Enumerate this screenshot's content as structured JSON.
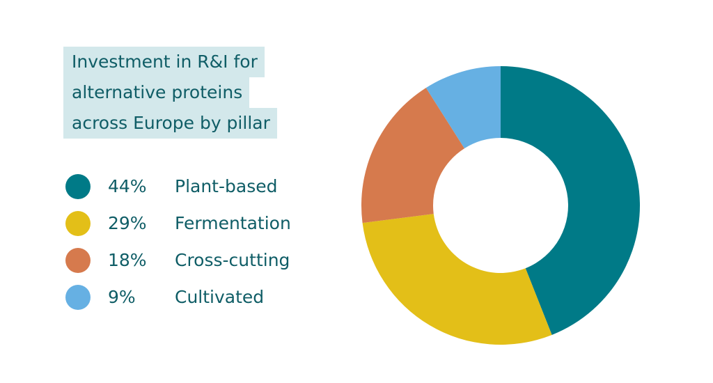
{
  "chart_data": {
    "type": "pie",
    "donut": true,
    "title_lines": [
      "Investment in R&I for",
      "alternative proteins",
      "across Europe by pillar"
    ],
    "categories": [
      "Plant-based",
      "Fermentation",
      "Cross-cutting",
      "Cultivated"
    ],
    "values": [
      44,
      29,
      18,
      9
    ],
    "value_labels": [
      "44%",
      "29%",
      "18%",
      "9%"
    ],
    "colors": [
      "#007a87",
      "#e3bf18",
      "#d67a4d",
      "#66b0e3"
    ],
    "legend_position": "left"
  }
}
